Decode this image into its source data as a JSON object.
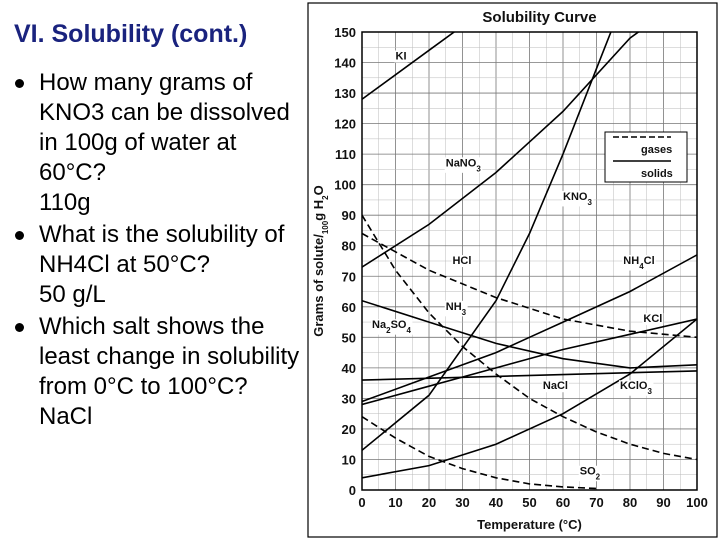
{
  "slide": {
    "title": "VI. Solubility (cont.)",
    "bullets": [
      {
        "question": "How many grams of KNO3 can be dissolved in 100g of water at 60°C?",
        "answer": "110g"
      },
      {
        "question": "What is the solubility of NH4Cl at 50°C?",
        "answer": "50 g/L"
      },
      {
        "question": "Which salt shows the least change in solubility from 0°C to 100°C?",
        "answer": "NaCl"
      }
    ]
  },
  "chart_data": {
    "type": "line",
    "title": "Solubility Curve",
    "xlabel": "Temperature (°C)",
    "ylabel": "Grams of solute/100g H2O",
    "xlim": [
      0,
      100
    ],
    "ylim": [
      0,
      150
    ],
    "x_ticks": [
      0,
      10,
      20,
      30,
      40,
      50,
      60,
      70,
      80,
      90,
      100
    ],
    "y_ticks": [
      0,
      10,
      20,
      30,
      40,
      50,
      60,
      70,
      80,
      90,
      100,
      110,
      120,
      130,
      140,
      150
    ],
    "grid": true,
    "legend": {
      "position": "right",
      "entries": [
        {
          "label": "gases",
          "style": "dashed"
        },
        {
          "label": "solids",
          "style": "solid"
        }
      ]
    },
    "series": [
      {
        "name": "KI",
        "style": "solid",
        "label_at": [
          10,
          141
        ],
        "points": [
          [
            0,
            128
          ],
          [
            20,
            144
          ],
          [
            30,
            152
          ]
        ]
      },
      {
        "name": "NaNO3",
        "style": "solid",
        "label_at": [
          25,
          106
        ],
        "points": [
          [
            0,
            73
          ],
          [
            20,
            87
          ],
          [
            40,
            104
          ],
          [
            60,
            124
          ],
          [
            80,
            148
          ],
          [
            85,
            152
          ]
        ]
      },
      {
        "name": "KNO3",
        "style": "solid",
        "label_at": [
          60,
          95
        ],
        "points": [
          [
            0,
            13
          ],
          [
            20,
            31
          ],
          [
            40,
            62
          ],
          [
            50,
            84
          ],
          [
            60,
            110
          ],
          [
            70,
            138
          ],
          [
            75,
            152
          ]
        ]
      },
      {
        "name": "HCl",
        "style": "dashed",
        "label_at": [
          27,
          74
        ],
        "points": [
          [
            0,
            84
          ],
          [
            20,
            72
          ],
          [
            40,
            63
          ],
          [
            60,
            56
          ],
          [
            80,
            52
          ],
          [
            100,
            50
          ]
        ]
      },
      {
        "name": "NH4Cl",
        "style": "solid",
        "label_at": [
          78,
          74
        ],
        "points": [
          [
            0,
            29
          ],
          [
            20,
            37
          ],
          [
            40,
            45
          ],
          [
            50,
            50
          ],
          [
            60,
            55
          ],
          [
            80,
            65
          ],
          [
            100,
            77
          ]
        ]
      },
      {
        "name": "NH3",
        "style": "dashed",
        "label_at": [
          25,
          59
        ],
        "points": [
          [
            0,
            90
          ],
          [
            10,
            72
          ],
          [
            20,
            58
          ],
          [
            30,
            47
          ],
          [
            40,
            38
          ],
          [
            50,
            30
          ],
          [
            60,
            24
          ],
          [
            70,
            19
          ],
          [
            80,
            15
          ],
          [
            90,
            12
          ],
          [
            100,
            10
          ]
        ]
      },
      {
        "name": "KCl",
        "style": "solid",
        "label_at": [
          84,
          55
        ],
        "points": [
          [
            0,
            28
          ],
          [
            20,
            34
          ],
          [
            40,
            40
          ],
          [
            60,
            46
          ],
          [
            80,
            51
          ],
          [
            100,
            56
          ]
        ]
      },
      {
        "name": "Na2SO4",
        "style": "solid",
        "label_at": [
          3,
          53
        ],
        "points": [
          [
            0,
            62
          ],
          [
            20,
            55
          ],
          [
            40,
            48
          ],
          [
            60,
            43
          ],
          [
            80,
            40
          ],
          [
            100,
            41
          ]
        ]
      },
      {
        "name": "NaCl",
        "style": "solid",
        "label_at": [
          54,
          33
        ],
        "points": [
          [
            0,
            36
          ],
          [
            100,
            39
          ]
        ]
      },
      {
        "name": "KClO3",
        "style": "solid",
        "label_at": [
          77,
          33
        ],
        "points": [
          [
            0,
            4
          ],
          [
            20,
            8
          ],
          [
            40,
            15
          ],
          [
            60,
            25
          ],
          [
            80,
            38
          ],
          [
            100,
            56
          ]
        ]
      },
      {
        "name": "SO2",
        "style": "dashed",
        "label_at": [
          65,
          5
        ],
        "points": [
          [
            0,
            24
          ],
          [
            10,
            17
          ],
          [
            20,
            11
          ],
          [
            30,
            7
          ],
          [
            40,
            4
          ],
          [
            50,
            2
          ],
          [
            60,
            1
          ],
          [
            70,
            0.5
          ]
        ]
      }
    ]
  }
}
